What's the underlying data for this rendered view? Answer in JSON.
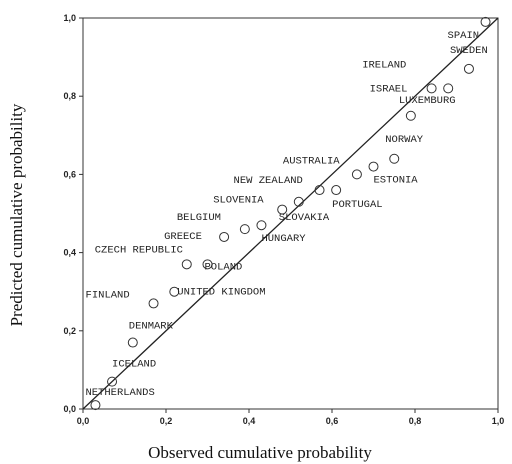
{
  "chart_data": {
    "type": "scatter",
    "xlabel": "Observed cumulative probability",
    "ylabel": "Predicted cumulative probability",
    "xlim": [
      0,
      1
    ],
    "ylim": [
      0,
      1
    ],
    "x_ticks": [
      "0,0",
      "0,2",
      "0,4",
      "0,6",
      "0,8",
      "1,0"
    ],
    "y_ticks": [
      "0,0",
      "0,2",
      "0,4",
      "0,6",
      "0,8",
      "1,0"
    ],
    "reference_line": [
      [
        0,
        0
      ],
      [
        1,
        1
      ]
    ],
    "grid": false,
    "points": [
      {
        "label": "NETHERLANDS",
        "x": 0.03,
        "y": 0.01
      },
      {
        "label": "ICELAND",
        "x": 0.07,
        "y": 0.07
      },
      {
        "label": "DENMARK",
        "x": 0.12,
        "y": 0.17
      },
      {
        "label": "FINLAND",
        "x": 0.17,
        "y": 0.27
      },
      {
        "label": "UNITED KINGDOM",
        "x": 0.22,
        "y": 0.3
      },
      {
        "label": "CZECH REPUBLIC",
        "x": 0.25,
        "y": 0.37
      },
      {
        "label": "POLAND",
        "x": 0.3,
        "y": 0.37
      },
      {
        "label": "GREECE",
        "x": 0.34,
        "y": 0.44
      },
      {
        "label": "BELGIUM",
        "x": 0.39,
        "y": 0.46
      },
      {
        "label": "HUNGARY",
        "x": 0.43,
        "y": 0.47
      },
      {
        "label": "SLOVENIA",
        "x": 0.48,
        "y": 0.51
      },
      {
        "label": "SLOVAKIA",
        "x": 0.52,
        "y": 0.53
      },
      {
        "label": "NEW ZEALAND",
        "x": 0.57,
        "y": 0.56
      },
      {
        "label": "PORTUGAL",
        "x": 0.61,
        "y": 0.56
      },
      {
        "label": "AUSTRALIA",
        "x": 0.66,
        "y": 0.6
      },
      {
        "label": "ESTONIA",
        "x": 0.7,
        "y": 0.62
      },
      {
        "label": "NORWAY",
        "x": 0.75,
        "y": 0.64
      },
      {
        "label": "LUXEMBURG",
        "x": 0.79,
        "y": 0.75
      },
      {
        "label": "ISRAEL",
        "x": 0.84,
        "y": 0.82
      },
      {
        "label": "IRELAND",
        "x": 0.88,
        "y": 0.82
      },
      {
        "label": "SWEDEN",
        "x": 0.93,
        "y": 0.87
      },
      {
        "label": "SPAIN",
        "x": 0.97,
        "y": 0.99
      }
    ]
  }
}
